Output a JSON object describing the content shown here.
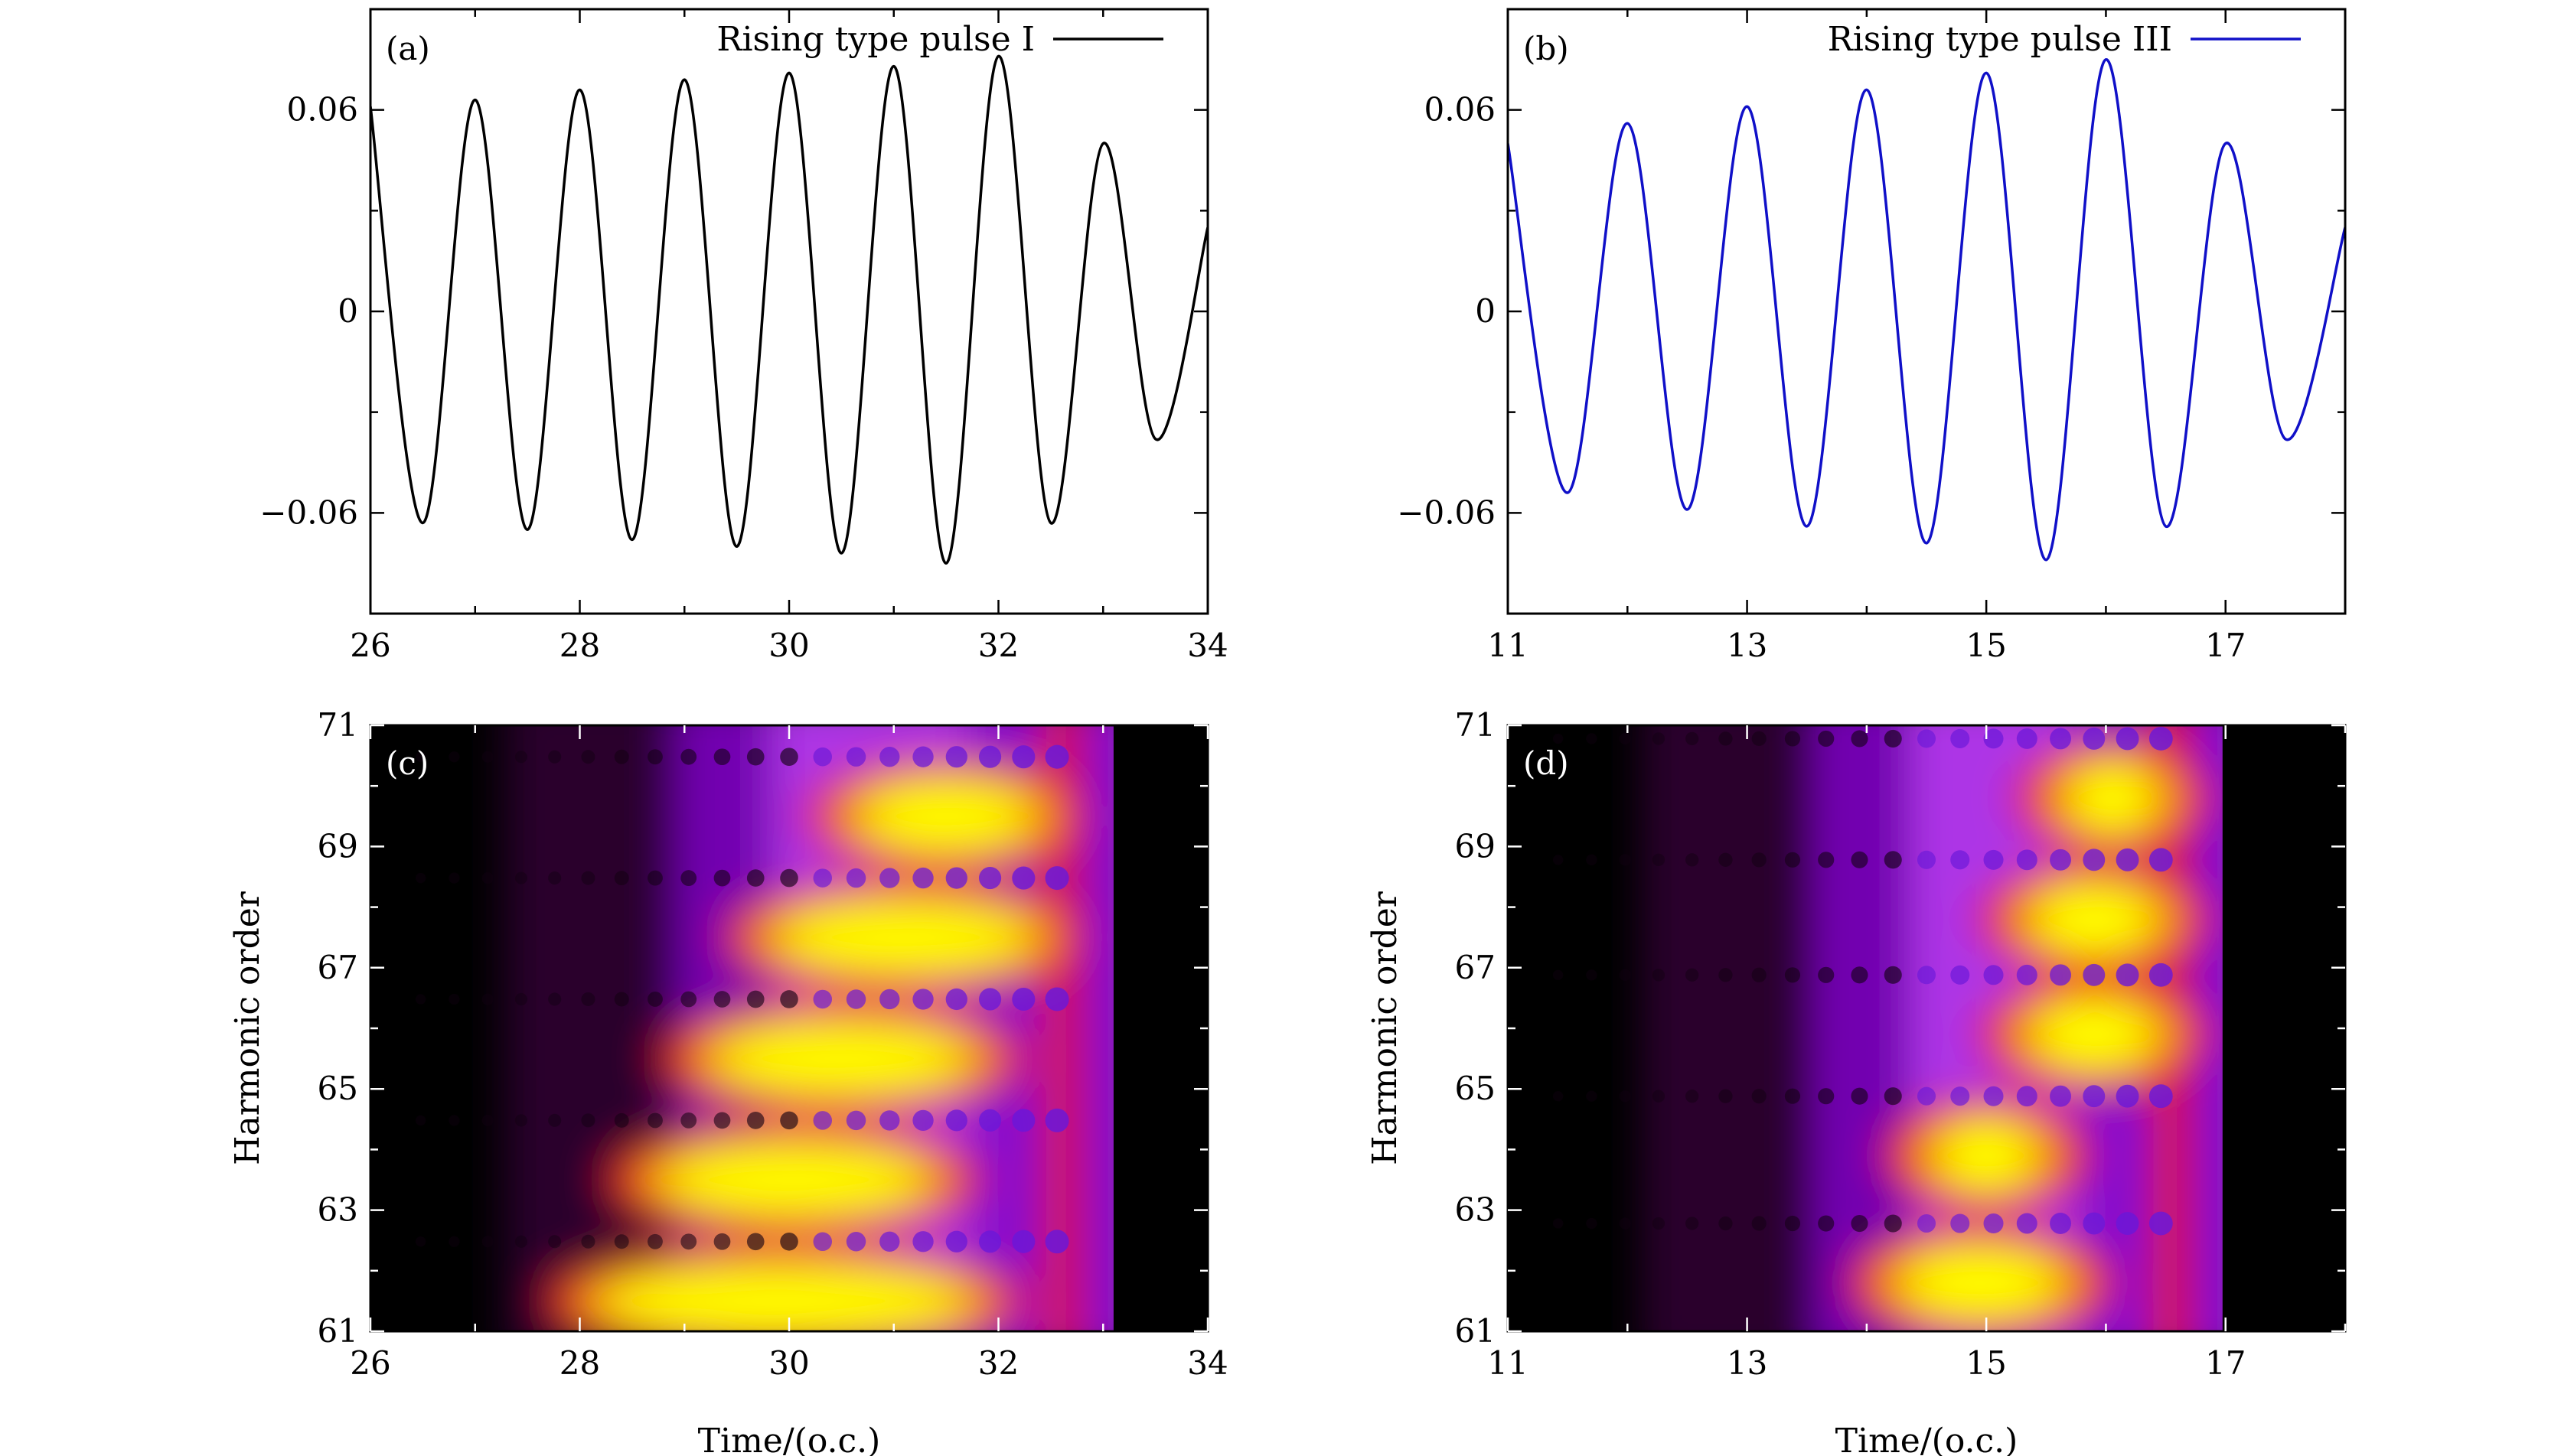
{
  "charts": [
    {
      "id": "a",
      "type": "line",
      "panel_label": "(a)",
      "legend": "Rising type pulse I",
      "line_color": "#000000",
      "xlim": [
        26,
        34
      ],
      "ylim": [
        -0.09,
        0.09
      ],
      "xticks": [
        "26",
        "28",
        "30",
        "32",
        "34"
      ],
      "xtick_values": [
        26,
        28,
        30,
        32,
        34
      ],
      "yticks": [
        "0.06",
        "0",
        "−0.06"
      ],
      "ytick_values": [
        0.06,
        0,
        -0.06
      ],
      "xlabel": "",
      "ylabel": "",
      "series": {
        "x": [
          26.0,
          26.5,
          27.0,
          27.5,
          28.0,
          28.5,
          29.0,
          29.5,
          30.0,
          30.5,
          31.0,
          31.5,
          32.0,
          32.5,
          33.0,
          33.5,
          34.0
        ],
        "y": [
          0.061,
          -0.063,
          0.063,
          -0.065,
          0.066,
          -0.068,
          0.069,
          -0.07,
          0.071,
          -0.072,
          0.073,
          -0.075,
          0.076,
          -0.063,
          0.05,
          -0.038,
          0.025
        ]
      }
    },
    {
      "id": "b",
      "type": "line",
      "panel_label": "(b)",
      "legend": "Rising type pulse III",
      "line_color": "#1010c8",
      "xlim": [
        11,
        18
      ],
      "ylim": [
        -0.09,
        0.09
      ],
      "xticks": [
        "11",
        "13",
        "15",
        "17"
      ],
      "xtick_values": [
        11,
        13,
        15,
        17
      ],
      "yticks": [
        "0.06",
        "0",
        "−0.06"
      ],
      "ytick_values": [
        0.06,
        0,
        -0.06
      ],
      "xlabel": "",
      "ylabel": "",
      "series": {
        "x": [
          11.0,
          11.5,
          12.0,
          12.5,
          13.0,
          13.5,
          14.0,
          14.5,
          15.0,
          15.5,
          16.0,
          16.5,
          17.0,
          17.5,
          18.0
        ],
        "y": [
          0.05,
          -0.054,
          0.056,
          -0.059,
          0.061,
          -0.064,
          0.066,
          -0.069,
          0.071,
          -0.074,
          0.075,
          -0.064,
          0.05,
          -0.038,
          0.025
        ]
      }
    },
    {
      "id": "c",
      "type": "heatmap",
      "panel_label": "(c)",
      "xlim": [
        26,
        34
      ],
      "ylim": [
        61,
        71
      ],
      "xticks": [
        "26",
        "28",
        "30",
        "32",
        "34"
      ],
      "xtick_values": [
        26,
        28,
        30,
        32,
        34
      ],
      "yticks": [
        "61",
        "63",
        "65",
        "67",
        "69",
        "71"
      ],
      "ytick_values": [
        61,
        63,
        65,
        67,
        69,
        71
      ],
      "xlabel": "Time/(o.c.)",
      "ylabel": "Harmonic order",
      "colormap": [
        "#000000",
        "#3a003f",
        "#7f00c8",
        "#b73ff0",
        "#e8181e",
        "#f7a000",
        "#ffff00"
      ],
      "cutoff_time": 32.9,
      "yellow_blobs": [
        {
          "harmonic": 61.5,
          "t_start": 28.3,
          "t_end": 31.6
        },
        {
          "harmonic": 63.5,
          "t_start": 28.9,
          "t_end": 31.2
        },
        {
          "harmonic": 65.5,
          "t_start": 29.4,
          "t_end": 31.6
        },
        {
          "harmonic": 67.5,
          "t_start": 30.0,
          "t_end": 32.2
        },
        {
          "harmonic": 69.5,
          "t_start": 30.8,
          "t_end": 32.2
        }
      ]
    },
    {
      "id": "d",
      "type": "heatmap",
      "panel_label": "(d)",
      "xlim": [
        11,
        18
      ],
      "ylim": [
        61,
        71
      ],
      "xticks": [
        "11",
        "13",
        "15",
        "17"
      ],
      "xtick_values": [
        11,
        13,
        15,
        17
      ],
      "yticks": [
        "61",
        "63",
        "65",
        "67",
        "69",
        "71"
      ],
      "ytick_values": [
        61,
        63,
        65,
        67,
        69,
        71
      ],
      "xlabel": "Time/(o.c.)",
      "ylabel": "Harmonic order",
      "colormap": [
        "#000000",
        "#3a003f",
        "#7f00c8",
        "#b73ff0",
        "#e8181e",
        "#f7a000",
        "#ffff00"
      ],
      "cutoff_time": 16.8,
      "yellow_blobs": [
        {
          "harmonic": 61.8,
          "t_start": 14.4,
          "t_end": 15.5
        },
        {
          "harmonic": 63.9,
          "t_start": 14.7,
          "t_end": 15.3
        },
        {
          "harmonic": 65.9,
          "t_start": 15.5,
          "t_end": 16.3
        },
        {
          "harmonic": 67.8,
          "t_start": 15.5,
          "t_end": 16.3
        },
        {
          "harmonic": 69.8,
          "t_start": 15.8,
          "t_end": 16.3
        }
      ]
    }
  ]
}
